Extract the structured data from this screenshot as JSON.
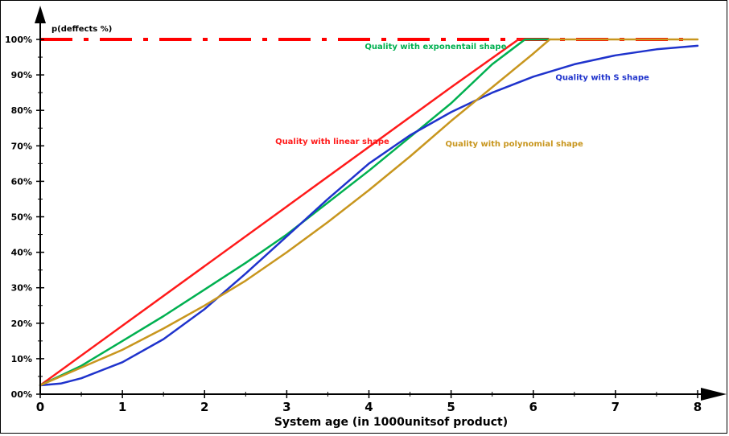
{
  "chart_data": {
    "type": "line",
    "title": "",
    "ylabel": "p(deffects %)",
    "xlabel": "System age (in 1000unitsof product)",
    "xlim": [
      0,
      8
    ],
    "ylim": [
      0,
      100
    ],
    "x_ticks": [
      "0",
      "1",
      "2",
      "3",
      "4",
      "5",
      "6",
      "7",
      "8"
    ],
    "y_ticks": [
      "00%",
      "10%",
      "20%",
      "30%",
      "40%",
      "50%",
      "60%",
      "70%",
      "80%",
      "90%",
      "100%"
    ],
    "grid": false,
    "reference_line": {
      "y": 100,
      "color": "#ff0000",
      "style": "dash-dot"
    },
    "series": [
      {
        "name": "Quality with linear shape",
        "color": "#ff1a1a",
        "x": [
          0,
          1,
          2,
          3,
          4,
          5,
          5.82,
          6.0
        ],
        "y": [
          2.5,
          19.3,
          36.1,
          52.9,
          69.7,
          86.5,
          100,
          100
        ]
      },
      {
        "name": "Quality with exponentail shape",
        "color": "#00b050",
        "x": [
          0,
          0.5,
          1,
          1.5,
          2,
          2.5,
          3,
          3.5,
          4,
          4.5,
          5,
          5.5,
          5.9,
          6.2
        ],
        "y": [
          2.5,
          8,
          15,
          22,
          29.5,
          37,
          45,
          54,
          63,
          72.5,
          82,
          93,
          100,
          100
        ]
      },
      {
        "name": "Quality with S shape",
        "color": "#1f33cc",
        "x": [
          0,
          0.25,
          0.5,
          1,
          1.5,
          2,
          2.5,
          3,
          3.5,
          4,
          4.5,
          5,
          5.5,
          6,
          6.5,
          7,
          7.5,
          8
        ],
        "y": [
          2.5,
          3,
          4.5,
          9,
          15.5,
          24,
          34,
          44.5,
          55,
          65,
          73,
          79.5,
          85,
          89.5,
          93,
          95.5,
          97.2,
          98.2
        ]
      },
      {
        "name": "Quality with polynomial shape",
        "color": "#c8961e",
        "x": [
          0,
          0.5,
          1,
          1.5,
          2,
          2.5,
          3,
          3.5,
          4,
          4.5,
          5,
          5.5,
          6,
          6.2,
          8
        ],
        "y": [
          2.5,
          7.5,
          12.5,
          18.5,
          25,
          32,
          40,
          48.5,
          57.5,
          67,
          77,
          86.5,
          96,
          100,
          100
        ]
      }
    ],
    "annotations": [
      {
        "text": "Quality with exponentail shape",
        "color": "#00b050",
        "x": 3.95,
        "y": 97.3
      },
      {
        "text": "Quality with S shape",
        "color": "#1f33cc",
        "x": 6.27,
        "y": 88.5
      },
      {
        "text": "Quality with linear shape",
        "color": "#ff1a1a",
        "x": 2.86,
        "y": 70.5
      },
      {
        "text": "Quality with polynomial shape",
        "color": "#c8961e",
        "x": 4.93,
        "y": 69.8
      }
    ]
  }
}
